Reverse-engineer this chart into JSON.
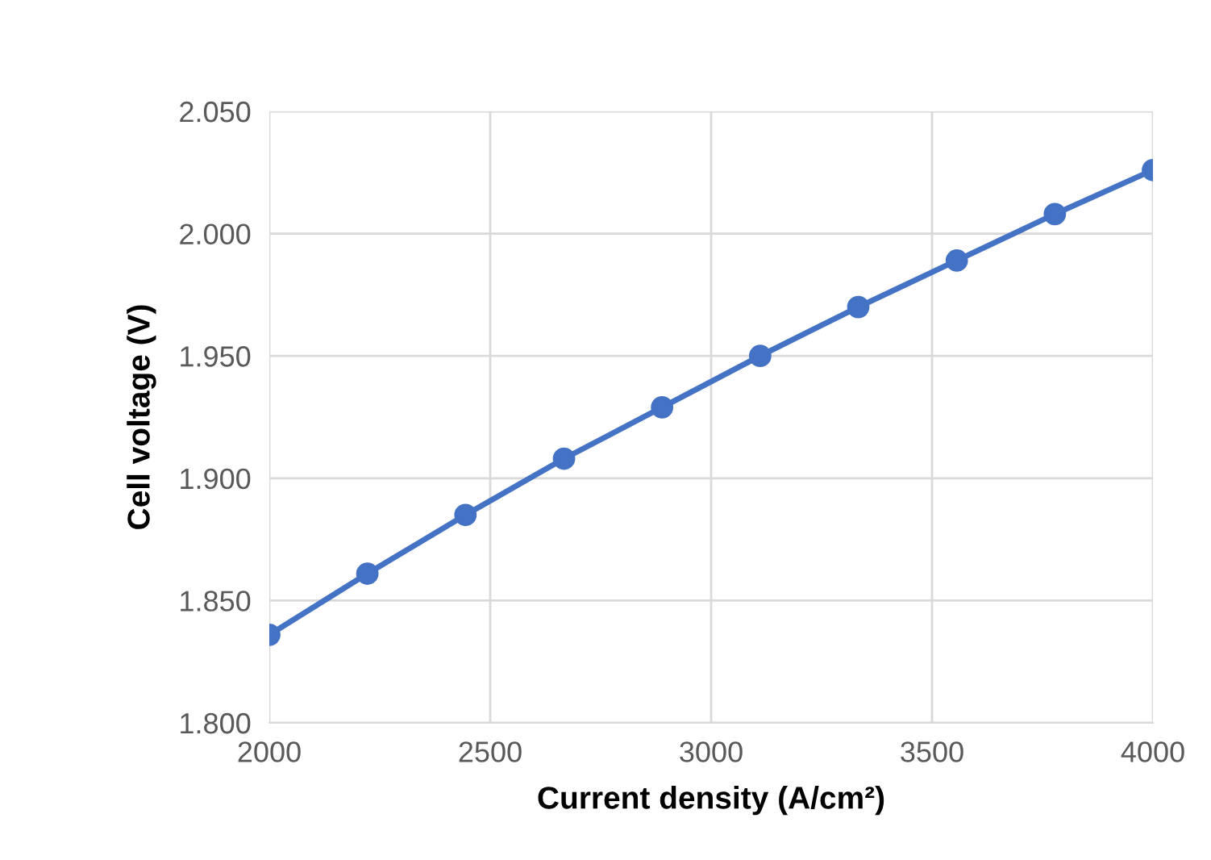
{
  "chart_data": {
    "type": "line",
    "xlabel": "Current density (A/cm²)",
    "ylabel": "Cell voltage (V)",
    "x": [
      2000,
      2222,
      2444,
      2667,
      2889,
      3111,
      3333,
      3556,
      3778,
      4000
    ],
    "series": [
      {
        "color": "#4472c4",
        "values": [
          1.836,
          1.861,
          1.885,
          1.908,
          1.929,
          1.95,
          1.97,
          1.989,
          2.008,
          2.026
        ]
      }
    ],
    "xlim": [
      2000,
      4000
    ],
    "ylim": [
      1.8,
      2.05
    ],
    "xticks": [
      2000,
      2500,
      3000,
      3500,
      4000
    ],
    "yticks": [
      {
        "value": 1.8,
        "label": "1.800"
      },
      {
        "value": 1.85,
        "label": "1.850"
      },
      {
        "value": 1.9,
        "label": "1.900"
      },
      {
        "value": 1.95,
        "label": "1.950"
      },
      {
        "value": 2.0,
        "label": "2.000"
      },
      {
        "value": 2.05,
        "label": "2.050"
      }
    ],
    "grid": true,
    "marker": "circle",
    "line_style": "solid",
    "legend": false
  }
}
